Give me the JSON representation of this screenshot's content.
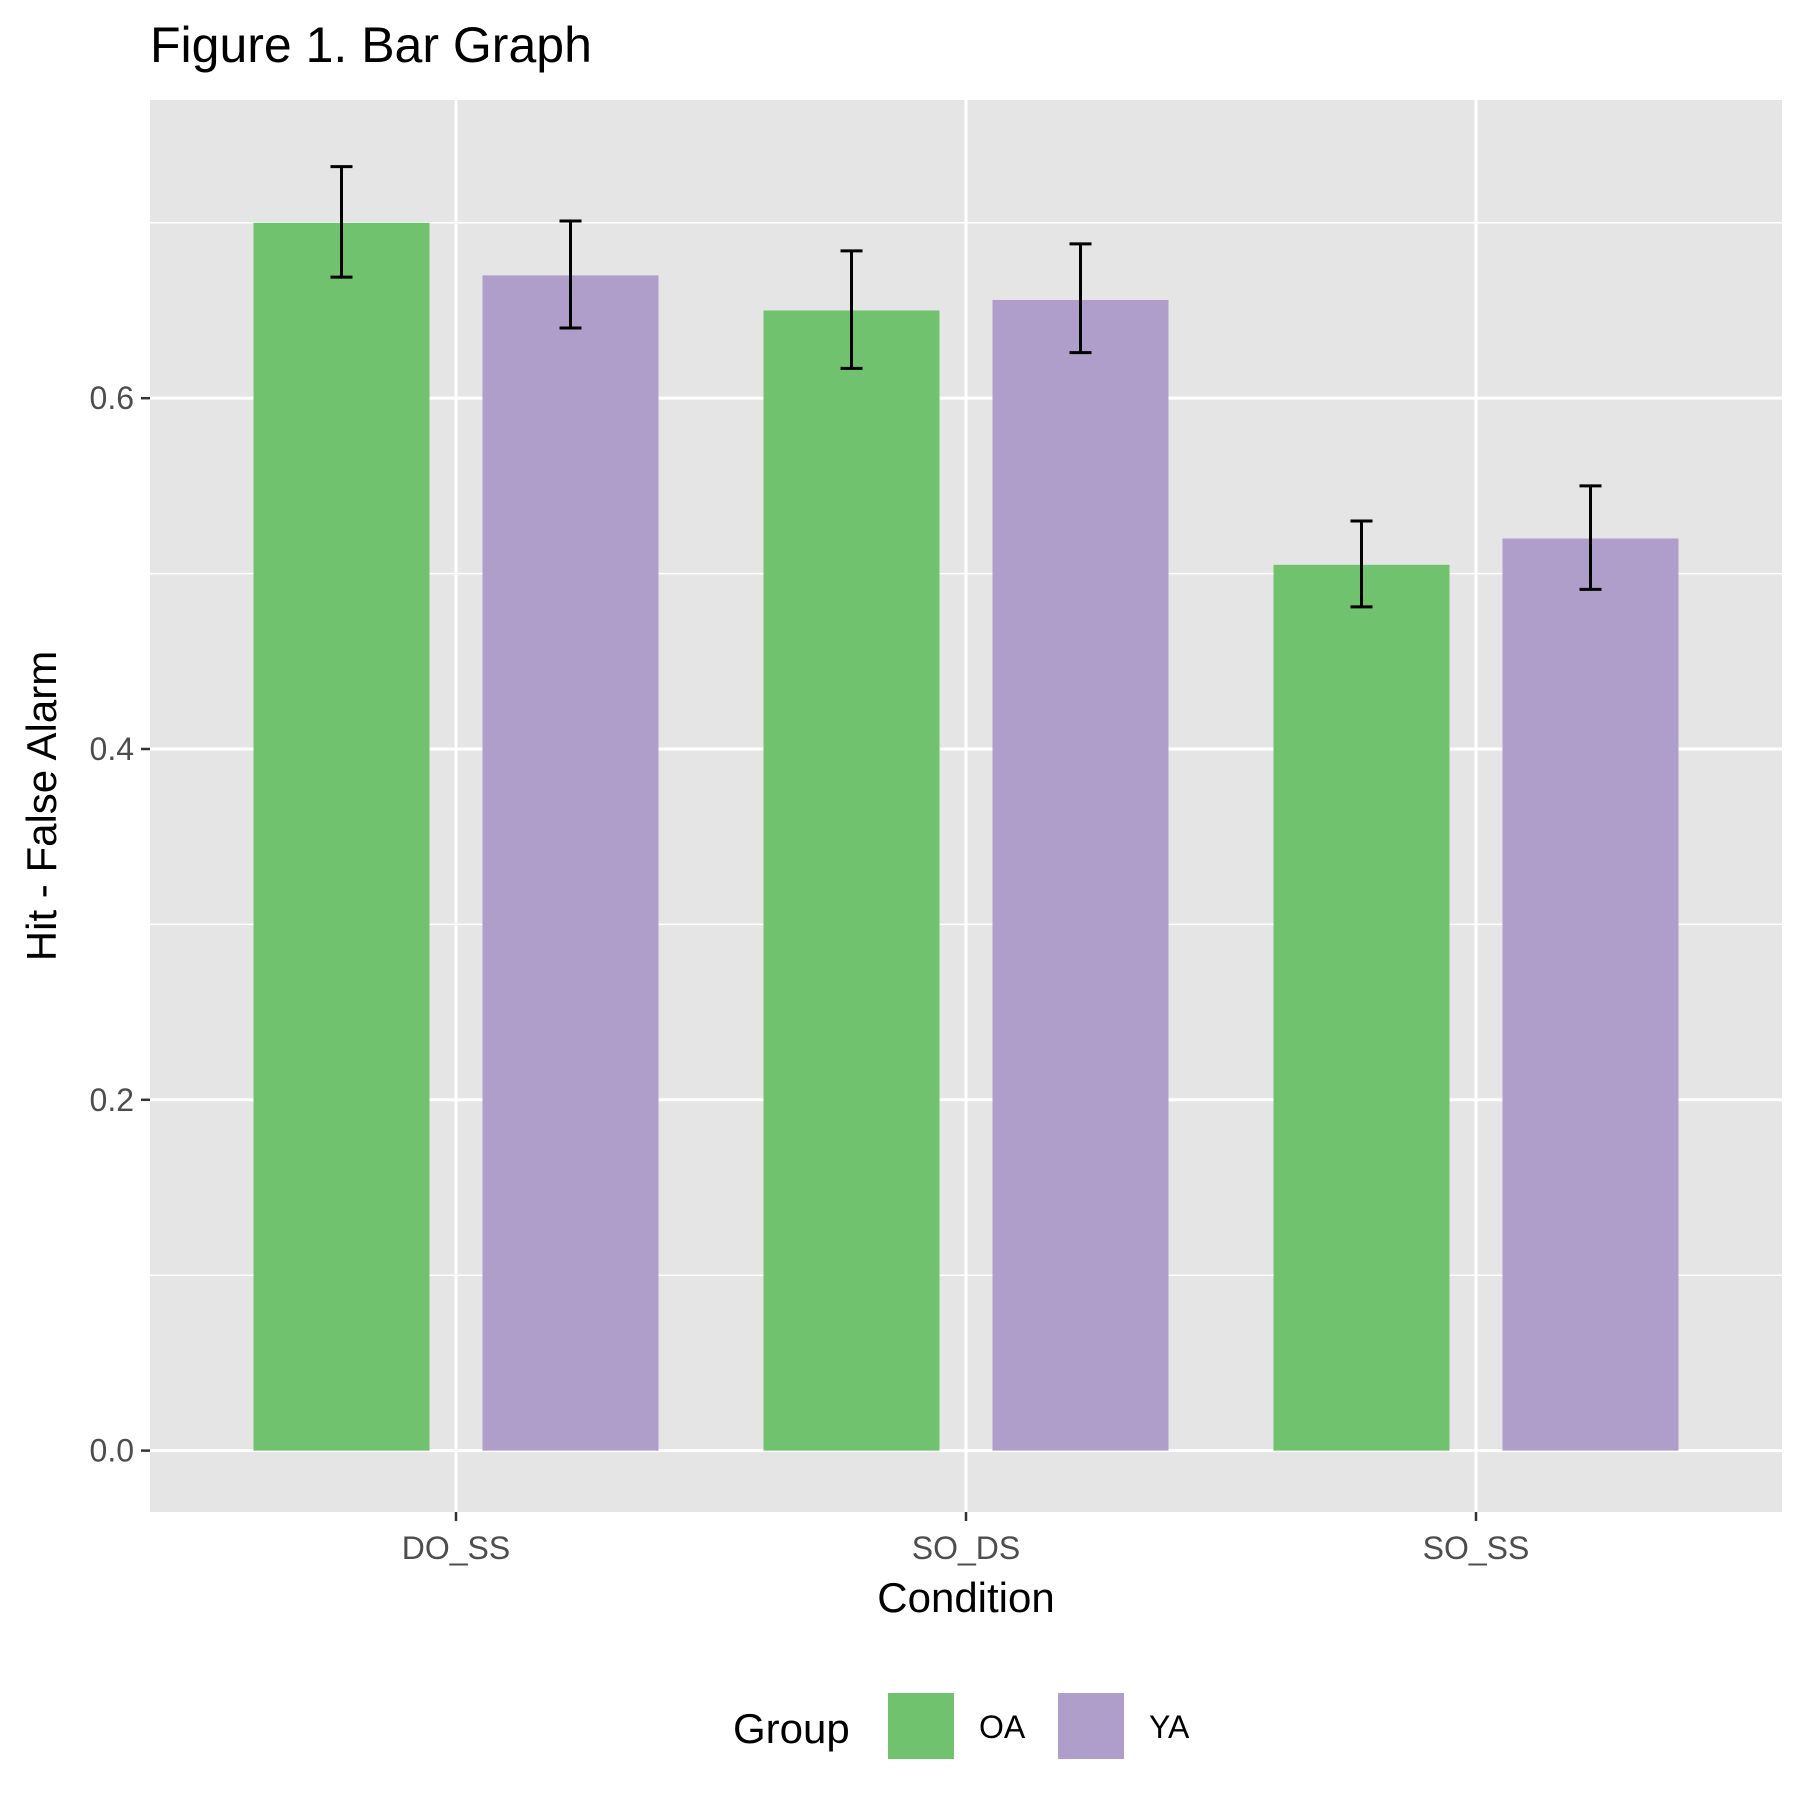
{
  "chart_data": {
    "type": "bar",
    "title": "Figure 1. Bar Graph",
    "xlabel": "Condition",
    "ylabel": "Hit - False Alarm",
    "categories": [
      "DO_SS",
      "SO_DS",
      "SO_SS"
    ],
    "series": [
      {
        "name": "OA",
        "color": "#71c26e",
        "values": [
          0.7,
          0.65,
          0.505
        ],
        "error_low": [
          0.669,
          0.617,
          0.481
        ],
        "error_high": [
          0.732,
          0.684,
          0.53
        ]
      },
      {
        "name": "YA",
        "color": "#af9dca",
        "values": [
          0.67,
          0.656,
          0.52
        ],
        "error_low": [
          0.64,
          0.626,
          0.491
        ],
        "error_high": [
          0.701,
          0.688,
          0.55
        ]
      }
    ],
    "ylim": [
      -0.035,
      0.77
    ],
    "yticks": [
      0.0,
      0.2,
      0.4,
      0.6
    ],
    "ytick_labels": [
      "0.0",
      "0.2",
      "0.4",
      "0.6"
    ],
    "grid": true,
    "legend": {
      "title": "Group",
      "position": "bottom"
    }
  }
}
